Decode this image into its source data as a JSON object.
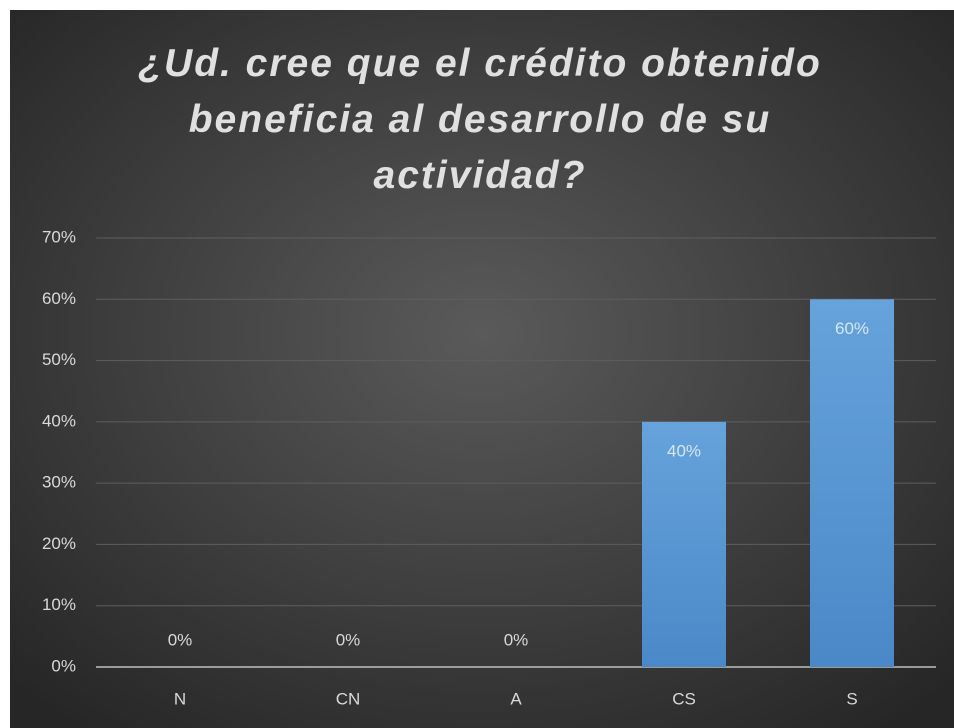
{
  "chart_data": {
    "type": "bar",
    "title": "¿Ud. cree que el crédito obtenido beneficia al desarrollo de su actividad?",
    "categories": [
      "N",
      "CN",
      "A",
      "CS",
      "S"
    ],
    "values": [
      0,
      0,
      0,
      40,
      60
    ],
    "value_labels": [
      "0%",
      "0%",
      "0%",
      "40%",
      "60%"
    ],
    "color": "#5b9bd5",
    "ylim": [
      0,
      70
    ],
    "yticks": [
      {
        "value": 0,
        "label": "0%"
      },
      {
        "value": 10,
        "label": "10%"
      },
      {
        "value": 20,
        "label": "20%"
      },
      {
        "value": 30,
        "label": "30%"
      },
      {
        "value": 40,
        "label": "40%"
      },
      {
        "value": 50,
        "label": "50%"
      },
      {
        "value": 60,
        "label": "60%"
      },
      {
        "value": 70,
        "label": "70%"
      }
    ],
    "grid": true
  }
}
